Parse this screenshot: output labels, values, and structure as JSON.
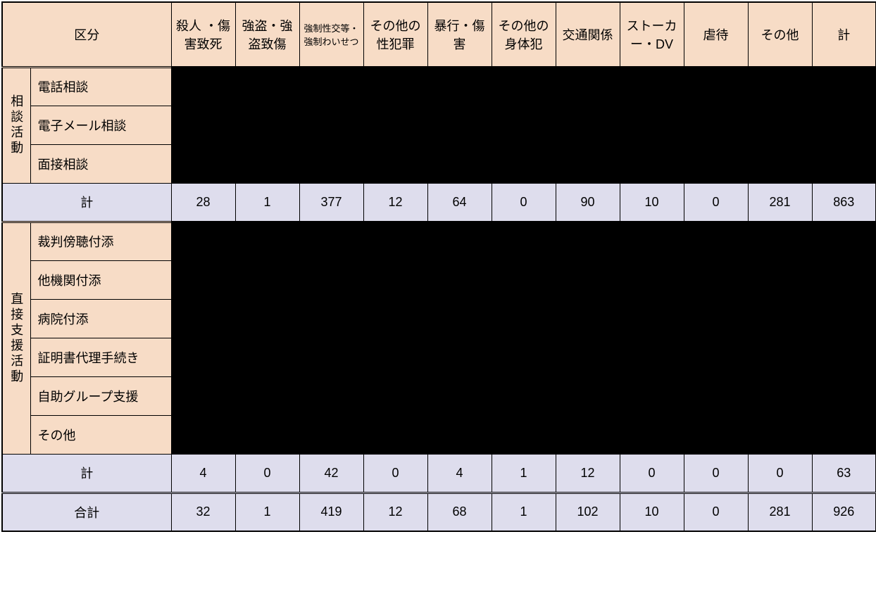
{
  "table": {
    "headers": {
      "kubun": "区分",
      "cols": [
        "殺人 ・傷害致死",
        "強盗・強盗致傷",
        "強制性交等・強制わいせつ",
        "その他の性犯罪",
        "暴行・傷害",
        "その他の身体犯",
        "交通関係",
        "ストーカー・DV",
        "虐待",
        "その他",
        "計"
      ]
    },
    "sections": [
      {
        "group_label": "相談活動",
        "rows": [
          {
            "label": "電話相談",
            "blackout": true
          },
          {
            "label": "電子メール相談",
            "blackout": true
          },
          {
            "label": "面接相談",
            "blackout": true
          }
        ],
        "subtotal": {
          "label": "計",
          "values": [
            "28",
            "1",
            "377",
            "12",
            "64",
            "0",
            "90",
            "10",
            "0",
            "281",
            "863"
          ]
        }
      },
      {
        "group_label": "直接支援活動",
        "rows": [
          {
            "label": "裁判傍聴付添",
            "blackout": true
          },
          {
            "label": "他機関付添",
            "blackout": true
          },
          {
            "label": "病院付添",
            "blackout": true
          },
          {
            "label": "証明書代理手続き",
            "blackout": true
          },
          {
            "label": "自助グループ支援",
            "blackout": true
          },
          {
            "label": "その他",
            "blackout": true
          }
        ],
        "subtotal": {
          "label": "計",
          "values": [
            "4",
            "0",
            "42",
            "0",
            "4",
            "1",
            "12",
            "0",
            "0",
            "0",
            "63"
          ]
        }
      }
    ],
    "total": {
      "label": "合計",
      "values": [
        "32",
        "1",
        "419",
        "12",
        "68",
        "1",
        "102",
        "10",
        "0",
        "281",
        "926"
      ]
    },
    "colors": {
      "header_bg": "#f7dcc6",
      "subtotal_bg": "#dedded",
      "blackout": "#000000",
      "border": "#000000",
      "background": "#ffffff"
    }
  }
}
